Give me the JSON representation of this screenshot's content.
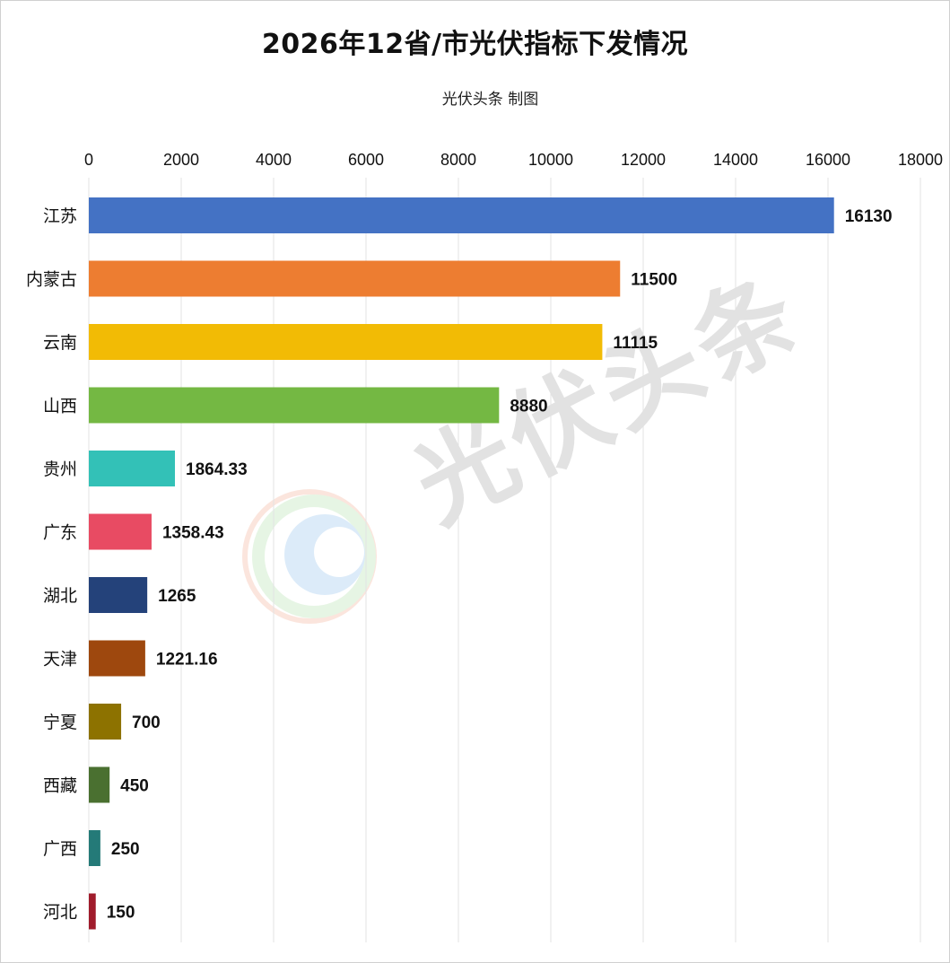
{
  "title": "2026年12省/市光伏指标下发情况",
  "subtitle": "光伏头条 制图",
  "watermark": "光伏头条",
  "chart_data": {
    "type": "bar",
    "orientation": "horizontal",
    "title": "2026年12省/市光伏指标下发情况",
    "subtitle": "光伏头条 制图",
    "xlim": [
      0,
      18000
    ],
    "x_ticks": [
      0,
      2000,
      4000,
      6000,
      8000,
      10000,
      12000,
      14000,
      16000,
      18000
    ],
    "x_axis_position": "top",
    "grid": true,
    "categories": [
      "江苏",
      "内蒙古",
      "云南",
      "山西",
      "贵州",
      "广东",
      "湖北",
      "天津",
      "宁夏",
      "西藏",
      "广西",
      "河北"
    ],
    "values": [
      16130,
      11500,
      11115,
      8880,
      1864.33,
      1358.43,
      1265,
      1221.16,
      700,
      450,
      250,
      150
    ],
    "value_labels": [
      "16130",
      "11500",
      "11115",
      "8880",
      "1864.33",
      "1358.43",
      "1265",
      "1221.16",
      "700",
      "450",
      "250",
      "150"
    ],
    "colors": [
      "#4472C4",
      "#ED7D31",
      "#F2BB05",
      "#74B843",
      "#33C1B7",
      "#E84B63",
      "#24427A",
      "#9E480E",
      "#8D7200",
      "#4A7030",
      "#247A78",
      "#A01C2C"
    ]
  }
}
